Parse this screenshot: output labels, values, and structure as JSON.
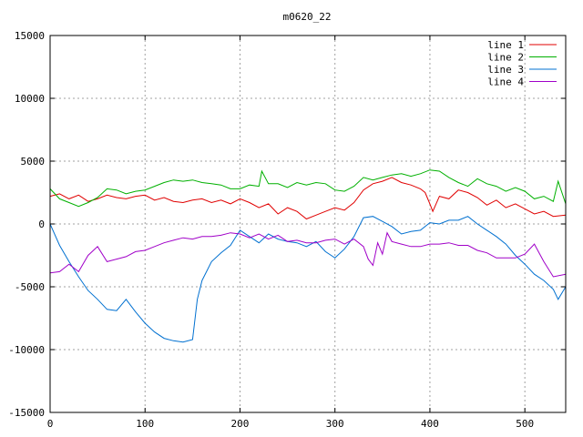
{
  "chart_data": {
    "type": "line",
    "title": "m0620_22",
    "xlabel": "",
    "ylabel": "",
    "xlim": [
      0,
      543
    ],
    "ylim": [
      -15000,
      15000
    ],
    "xticks": [
      0,
      100,
      200,
      300,
      400,
      500
    ],
    "yticks": [
      -15000,
      -10000,
      -5000,
      0,
      5000,
      10000,
      15000
    ],
    "grid": true,
    "legend_position": "top-right",
    "series": [
      {
        "name": "line 1",
        "color": "#e00000",
        "x": [
          0,
          10,
          20,
          30,
          40,
          50,
          60,
          70,
          80,
          90,
          100,
          110,
          120,
          130,
          140,
          150,
          160,
          170,
          180,
          190,
          200,
          210,
          220,
          230,
          240,
          250,
          260,
          270,
          280,
          290,
          300,
          310,
          320,
          330,
          340,
          350,
          360,
          370,
          380,
          390,
          395,
          400,
          403,
          410,
          420,
          430,
          440,
          450,
          460,
          470,
          480,
          490,
          500,
          510,
          520,
          530,
          543
        ],
        "y": [
          2200,
          2400,
          2000,
          2300,
          1800,
          2000,
          2300,
          2100,
          2000,
          2200,
          2300,
          1900,
          2100,
          1800,
          1700,
          1900,
          2000,
          1700,
          1900,
          1600,
          2000,
          1700,
          1300,
          1600,
          800,
          1300,
          1000,
          400,
          700,
          1000,
          1300,
          1100,
          1700,
          2700,
          3200,
          3400,
          3700,
          3300,
          3100,
          2800,
          2500,
          1600,
          1000,
          2200,
          2000,
          2700,
          2500,
          2100,
          1500,
          1900,
          1300,
          1600,
          1200,
          800,
          1000,
          600,
          700
        ]
      },
      {
        "name": "line 2",
        "color": "#00b000",
        "x": [
          0,
          10,
          20,
          30,
          40,
          50,
          60,
          70,
          80,
          90,
          100,
          110,
          120,
          130,
          140,
          150,
          160,
          170,
          180,
          190,
          200,
          210,
          220,
          223,
          230,
          240,
          250,
          260,
          270,
          280,
          290,
          300,
          310,
          320,
          330,
          340,
          350,
          360,
          370,
          380,
          390,
          400,
          410,
          420,
          430,
          440,
          450,
          460,
          470,
          480,
          490,
          500,
          510,
          520,
          530,
          535,
          543
        ],
        "y": [
          2800,
          2000,
          1700,
          1400,
          1700,
          2100,
          2800,
          2700,
          2400,
          2600,
          2700,
          3000,
          3300,
          3500,
          3400,
          3500,
          3300,
          3200,
          3100,
          2800,
          2800,
          3100,
          3000,
          4200,
          3200,
          3200,
          2900,
          3300,
          3100,
          3300,
          3200,
          2700,
          2600,
          3000,
          3700,
          3500,
          3700,
          3900,
          4000,
          3800,
          4000,
          4300,
          4200,
          3700,
          3300,
          3000,
          3600,
          3200,
          3000,
          2600,
          2900,
          2600,
          2000,
          2200,
          1800,
          3400,
          1600
        ]
      },
      {
        "name": "line 3",
        "color": "#0070d0",
        "x": [
          0,
          10,
          20,
          30,
          40,
          50,
          60,
          70,
          80,
          90,
          100,
          110,
          120,
          130,
          140,
          150,
          155,
          160,
          170,
          180,
          190,
          200,
          210,
          220,
          230,
          240,
          250,
          260,
          270,
          280,
          290,
          300,
          310,
          320,
          330,
          340,
          350,
          360,
          370,
          380,
          390,
          400,
          410,
          420,
          430,
          440,
          450,
          460,
          470,
          480,
          490,
          500,
          510,
          520,
          530,
          535,
          543
        ],
        "y": [
          0,
          -1700,
          -3000,
          -4200,
          -5300,
          -6000,
          -6800,
          -6900,
          -6000,
          -7000,
          -7900,
          -8600,
          -9100,
          -9300,
          -9400,
          -9200,
          -6000,
          -4500,
          -3000,
          -2300,
          -1700,
          -500,
          -1000,
          -1500,
          -800,
          -1200,
          -1400,
          -1500,
          -1800,
          -1400,
          -2200,
          -2700,
          -2000,
          -1000,
          500,
          600,
          200,
          -200,
          -800,
          -600,
          -500,
          100,
          0,
          300,
          300,
          600,
          0,
          -500,
          -1000,
          -1600,
          -2500,
          -3200,
          -4000,
          -4500,
          -5200,
          -6000,
          -5000
        ]
      },
      {
        "name": "line 4",
        "color": "#a000c8",
        "x": [
          0,
          10,
          20,
          30,
          40,
          50,
          60,
          70,
          80,
          90,
          100,
          110,
          120,
          130,
          140,
          150,
          160,
          170,
          180,
          190,
          200,
          210,
          220,
          230,
          240,
          250,
          260,
          270,
          280,
          290,
          300,
          310,
          320,
          330,
          335,
          340,
          345,
          350,
          355,
          360,
          370,
          380,
          390,
          400,
          410,
          420,
          430,
          440,
          450,
          460,
          470,
          480,
          490,
          500,
          510,
          520,
          530,
          543
        ],
        "y": [
          -3900,
          -3800,
          -3200,
          -3800,
          -2500,
          -1800,
          -3000,
          -2800,
          -2600,
          -2200,
          -2100,
          -1800,
          -1500,
          -1300,
          -1100,
          -1200,
          -1000,
          -1000,
          -900,
          -700,
          -800,
          -1100,
          -800,
          -1200,
          -900,
          -1400,
          -1300,
          -1500,
          -1500,
          -1300,
          -1200,
          -1600,
          -1200,
          -1800,
          -2800,
          -3300,
          -1500,
          -2400,
          -700,
          -1400,
          -1600,
          -1800,
          -1800,
          -1600,
          -1600,
          -1500,
          -1700,
          -1700,
          -2100,
          -2300,
          -2700,
          -2700,
          -2700,
          -2400,
          -1600,
          -3000,
          -4200,
          -4000
        ]
      }
    ]
  }
}
